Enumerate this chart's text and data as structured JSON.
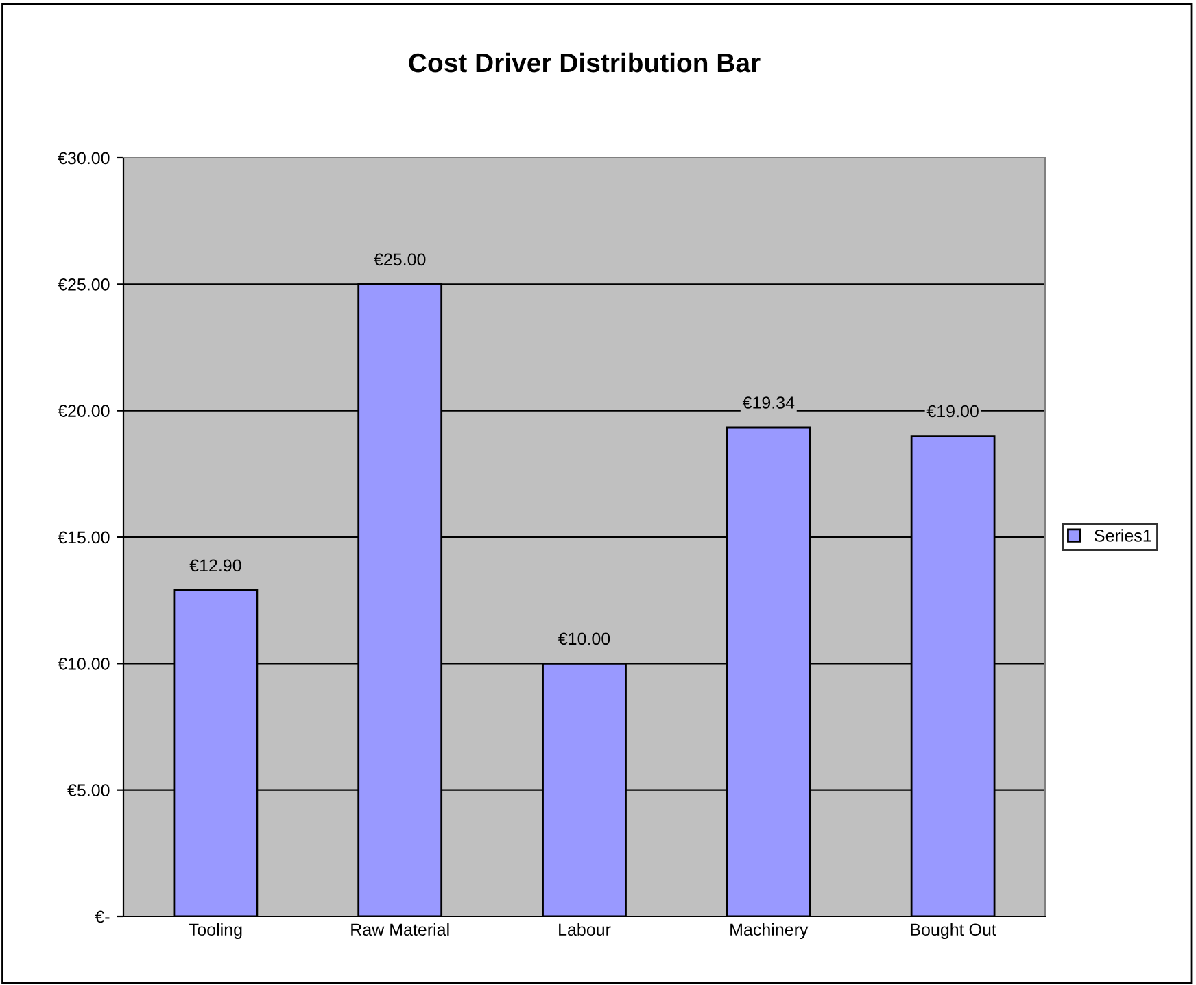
{
  "chart_data": {
    "type": "bar",
    "title": "Cost Driver Distribution Bar",
    "categories": [
      "Tooling",
      "Raw Material",
      "Labour",
      "Machinery",
      "Bought Out"
    ],
    "series": [
      {
        "name": "Series1",
        "color": "#9999ff",
        "values": [
          12.9,
          25.0,
          10.0,
          19.34,
          19.0
        ],
        "value_labels": [
          "€12.90",
          "€25.00",
          "€10.00",
          "€19.34",
          "€19.00"
        ]
      }
    ],
    "ylim": [
      0,
      30
    ],
    "yticks": [
      {
        "value": 0,
        "label": "€-"
      },
      {
        "value": 5,
        "label": "€5.00"
      },
      {
        "value": 10,
        "label": "€10.00"
      },
      {
        "value": 15,
        "label": "€15.00"
      },
      {
        "value": 20,
        "label": "€20.00"
      },
      {
        "value": 25,
        "label": "€25.00"
      },
      {
        "value": 30,
        "label": "€30.00"
      }
    ],
    "grid": "y",
    "legend": "right"
  }
}
